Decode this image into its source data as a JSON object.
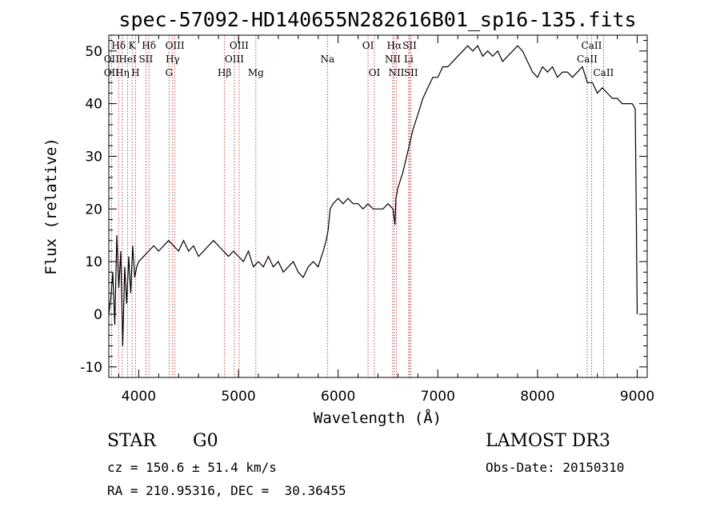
{
  "chart_data": {
    "type": "line",
    "title": "spec-57092-HD140655N282616B01_sp16-135.fits",
    "xlabel": "Wavelength (Å)",
    "ylabel": "Flux (relative)",
    "xlim": [
      3700,
      9100
    ],
    "ylim": [
      -12,
      53
    ],
    "xticks": [
      4000,
      5000,
      6000,
      7000,
      8000,
      9000
    ],
    "yticks": [
      -10,
      0,
      10,
      20,
      30,
      40,
      50
    ],
    "series": [
      {
        "name": "flux",
        "x": [
          3700,
          3720,
          3740,
          3760,
          3780,
          3800,
          3820,
          3840,
          3860,
          3880,
          3900,
          3920,
          3940,
          3960,
          3980,
          4000,
          4050,
          4100,
          4150,
          4200,
          4250,
          4300,
          4350,
          4400,
          4450,
          4500,
          4550,
          4600,
          4650,
          4700,
          4750,
          4800,
          4850,
          4900,
          4950,
          5000,
          5050,
          5100,
          5150,
          5200,
          5250,
          5300,
          5350,
          5400,
          5450,
          5500,
          5550,
          5600,
          5650,
          5700,
          5750,
          5800,
          5850,
          5880,
          5900,
          5920,
          5950,
          6000,
          6050,
          6100,
          6150,
          6200,
          6250,
          6300,
          6350,
          6400,
          6450,
          6500,
          6550,
          6570,
          6580,
          6600,
          6650,
          6700,
          6750,
          6800,
          6850,
          6900,
          6950,
          7000,
          7050,
          7100,
          7150,
          7200,
          7250,
          7300,
          7350,
          7400,
          7450,
          7500,
          7550,
          7600,
          7650,
          7700,
          7750,
          7800,
          7850,
          7900,
          7950,
          8000,
          8050,
          8100,
          8150,
          8200,
          8250,
          8300,
          8350,
          8400,
          8450,
          8500,
          8550,
          8600,
          8650,
          8700,
          8750,
          8800,
          8850,
          8900,
          8950,
          8980,
          8990,
          9000
        ],
        "y": [
          0,
          3,
          8,
          -2,
          15,
          5,
          12,
          -6,
          9,
          2,
          11,
          4,
          13,
          7,
          9,
          10,
          11,
          12,
          13,
          12,
          13,
          14,
          13,
          12,
          14,
          12,
          13,
          11,
          12,
          13,
          14,
          13,
          12,
          11,
          12,
          11,
          10,
          12,
          9,
          10,
          9,
          11,
          9,
          10,
          8,
          9,
          10,
          8,
          7,
          9,
          10,
          9,
          12,
          14,
          16,
          20,
          21,
          22,
          21,
          22,
          21,
          21,
          20,
          21,
          20,
          20,
          20,
          21,
          20,
          17,
          22,
          24,
          27,
          31,
          35,
          38,
          41,
          43,
          45,
          45,
          47,
          47,
          48,
          49,
          50,
          51,
          50,
          51,
          49,
          50,
          49,
          50,
          48,
          49,
          50,
          51,
          50,
          48,
          46,
          45,
          47,
          46,
          47,
          45,
          46,
          46,
          45,
          46,
          47,
          44,
          44,
          42,
          43,
          42,
          41,
          41,
          40,
          40,
          40,
          39,
          20,
          0
        ]
      }
    ],
    "line_ids": [
      {
        "label": "Hδ",
        "x": 3798,
        "row": 1
      },
      {
        "label": "K",
        "x": 3934,
        "row": 1
      },
      {
        "label": "Hδ",
        "x": 4102,
        "row": 1
      },
      {
        "label": "OIII",
        "x": 4363,
        "row": 1
      },
      {
        "label": "OIII",
        "x": 5007,
        "row": 1
      },
      {
        "label": "OI",
        "x": 6300,
        "row": 1
      },
      {
        "label": "Hα",
        "x": 6563,
        "row": 1
      },
      {
        "label": "SII",
        "x": 6717,
        "row": 1
      },
      {
        "label": "CaII",
        "x": 8542,
        "row": 1
      },
      {
        "label": "OII",
        "x": 3727,
        "row": 2
      },
      {
        "label": "HeI",
        "x": 3889,
        "row": 2
      },
      {
        "label": "SII",
        "x": 4072,
        "row": 2
      },
      {
        "label": "Hγ",
        "x": 4340,
        "row": 2
      },
      {
        "label": "OIII",
        "x": 4959,
        "row": 2
      },
      {
        "label": "Na",
        "x": 5893,
        "row": 2
      },
      {
        "label": "NII",
        "x": 6548,
        "row": 2
      },
      {
        "label": "Li",
        "x": 6708,
        "row": 2
      },
      {
        "label": "CaII",
        "x": 8498,
        "row": 2
      },
      {
        "label": "OII",
        "x": 3727,
        "row": 3
      },
      {
        "label": "Hη",
        "x": 3835,
        "row": 3
      },
      {
        "label": "H",
        "x": 3968,
        "row": 3
      },
      {
        "label": "G",
        "x": 4304,
        "row": 3
      },
      {
        "label": "Hβ",
        "x": 4861,
        "row": 3
      },
      {
        "label": "Mg",
        "x": 5175,
        "row": 3
      },
      {
        "label": "OI",
        "x": 6364,
        "row": 3
      },
      {
        "label": "NII",
        "x": 6584,
        "row": 3
      },
      {
        "label": "SII",
        "x": 6731,
        "row": 3
      },
      {
        "label": "CaII",
        "x": 8662,
        "row": 3
      }
    ],
    "marker_lines_x": [
      3727,
      3798,
      3835,
      3889,
      3934,
      3968,
      4072,
      4102,
      4304,
      4340,
      4363,
      4861,
      4959,
      5007,
      5175,
      5893,
      6300,
      6364,
      6548,
      6563,
      6584,
      6708,
      6717,
      6731,
      8498,
      8542,
      8662
    ]
  },
  "info": {
    "object_class": "STAR",
    "subclass": "G0",
    "survey": "LAMOST DR3",
    "redshift": "cz = 150.6 ± 51.4 km/s",
    "obs_date": "Obs-Date: 20150310",
    "coords": "RA = 210.95316, DEC =  30.36455"
  },
  "colors": {
    "marker_line": "#b22222",
    "spectrum": "#000000"
  }
}
